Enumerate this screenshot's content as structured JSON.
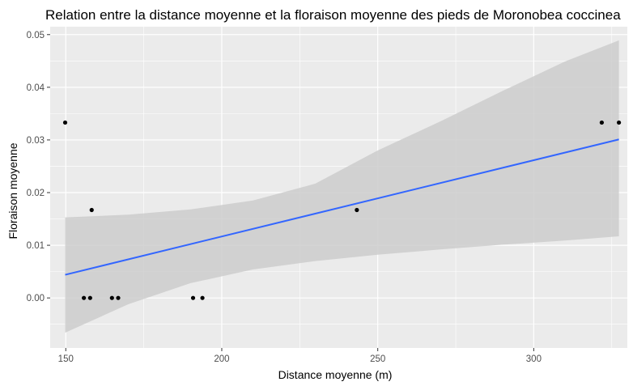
{
  "chart_data": {
    "type": "scatter",
    "title": "Relation entre la distance moyenne et la floraison moyenne des pieds de Moronobea coccinea",
    "xlabel": "Distance moyenne (m)",
    "ylabel": "Floraison moyenne",
    "xlim": [
      145,
      330
    ],
    "ylim": [
      -0.0095,
      0.0515
    ],
    "x_ticks": [
      150,
      200,
      250,
      300
    ],
    "y_ticks": [
      0.0,
      0.01,
      0.02,
      0.03,
      0.04,
      0.05
    ],
    "x_tick_labels": [
      "150",
      "200",
      "250",
      "300"
    ],
    "y_tick_labels": [
      "0.00",
      "0.01",
      "0.02",
      "0.03",
      "0.04",
      "0.05"
    ],
    "grid": true,
    "points": [
      {
        "x": 149.8,
        "y": 0.0333
      },
      {
        "x": 158.3,
        "y": 0.0167
      },
      {
        "x": 155.8,
        "y": 0.0
      },
      {
        "x": 157.8,
        "y": 0.0
      },
      {
        "x": 164.8,
        "y": 0.0
      },
      {
        "x": 166.8,
        "y": 0.0
      },
      {
        "x": 190.8,
        "y": 0.0
      },
      {
        "x": 193.8,
        "y": 0.0
      },
      {
        "x": 243.3,
        "y": 0.0167
      },
      {
        "x": 321.8,
        "y": 0.0333
      },
      {
        "x": 327.3,
        "y": 0.0333
      }
    ],
    "fit_line": {
      "x": [
        149.8,
        327.3
      ],
      "y": [
        0.0044,
        0.0301
      ]
    },
    "confidence_band": {
      "x": [
        149.8,
        170,
        190,
        210,
        230,
        250,
        270,
        290,
        310,
        327.3
      ],
      "upper": [
        0.0153,
        0.0158,
        0.0168,
        0.0185,
        0.0217,
        0.028,
        0.0335,
        0.0393,
        0.0449,
        0.0489
      ],
      "lower": [
        -0.0066,
        -0.0012,
        0.0028,
        0.0054,
        0.007,
        0.0082,
        0.0092,
        0.0101,
        0.0109,
        0.0117
      ]
    },
    "colors": {
      "panel": "#ebebeb",
      "grid": "#ffffff",
      "band": "#cccccc",
      "line": "#3366ff",
      "points": "#000000"
    }
  }
}
